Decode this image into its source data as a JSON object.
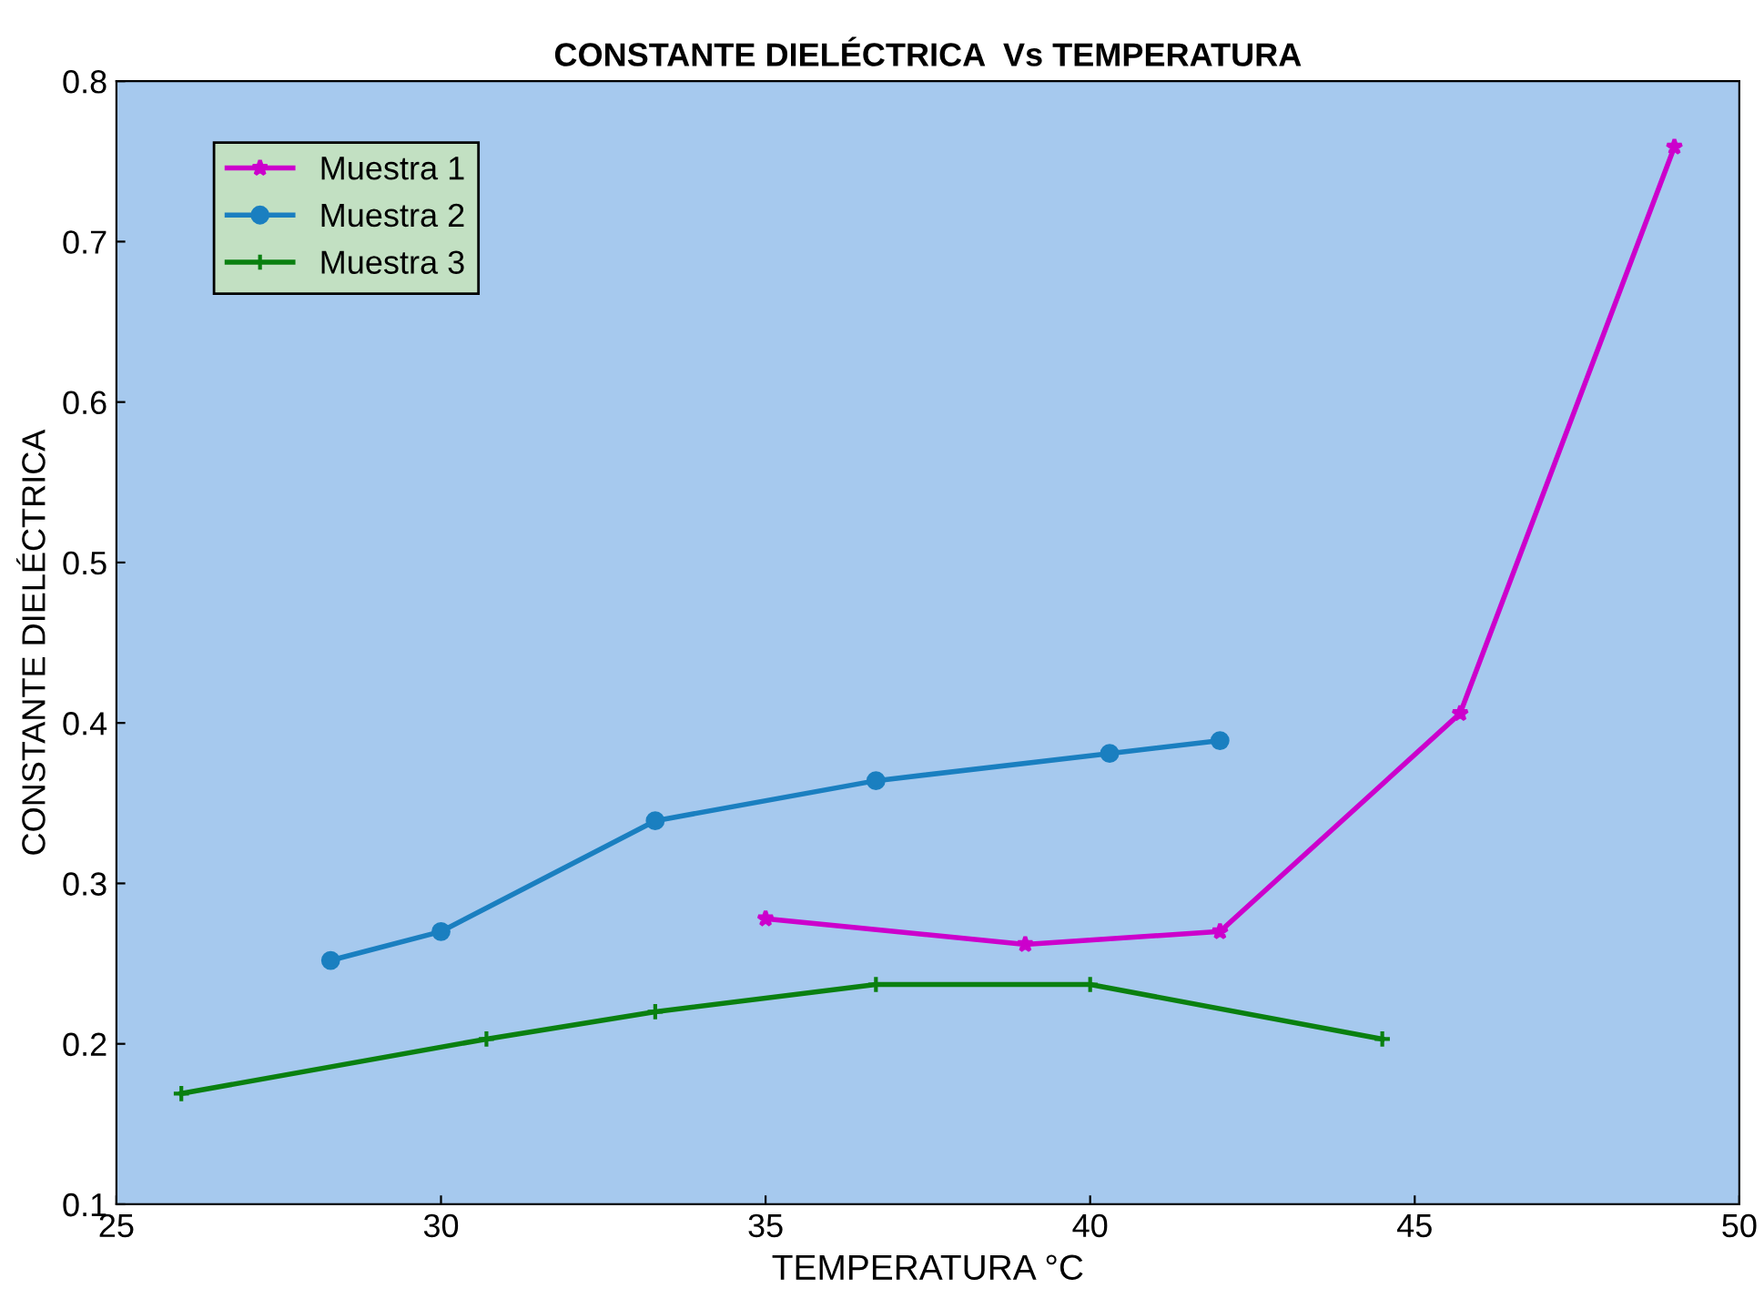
{
  "chart_data": {
    "type": "line",
    "title": "CONSTANTE DIELÉCTRICA  Vs TEMPERATURA",
    "xlabel": "TEMPERATURA °C",
    "ylabel": "CONSTANTE DIELÉCTRICA",
    "xlim": [
      25,
      50
    ],
    "xticks": [
      25,
      30,
      35,
      40,
      45,
      50
    ],
    "ylim": [
      0.1,
      0.8
    ],
    "yticks": [
      0.1,
      0.2,
      0.3,
      0.4,
      0.5,
      0.6,
      0.7,
      0.8
    ],
    "grid": false,
    "legend": "top left",
    "series": [
      {
        "name": "Muestra 1",
        "color": "#cc00cc",
        "marker": "star",
        "x": [
          35,
          39,
          42,
          45.7,
          49
        ],
        "values": [
          0.278,
          0.262,
          0.27,
          0.406,
          0.759
        ]
      },
      {
        "name": "Muestra 2",
        "color": "#1a7fc0",
        "marker": "circle",
        "x": [
          28.3,
          30,
          33.3,
          36.7,
          40.3,
          42
        ],
        "values": [
          0.252,
          0.27,
          0.339,
          0.364,
          0.381,
          0.389
        ]
      },
      {
        "name": "Muestra 3",
        "color": "#0a8010",
        "marker": "cross",
        "x": [
          26,
          30.7,
          33.3,
          36.7,
          40,
          44.5
        ],
        "values": [
          0.169,
          0.203,
          0.22,
          0.237,
          0.237,
          0.203
        ]
      }
    ]
  }
}
